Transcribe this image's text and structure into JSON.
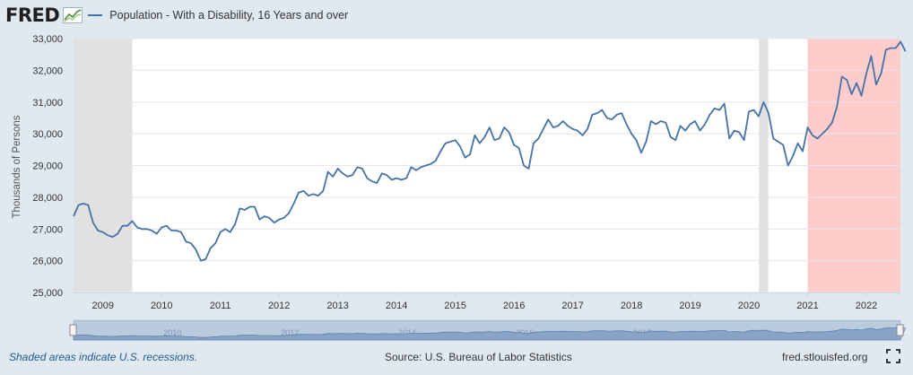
{
  "header": {
    "logo_text": "FRED",
    "legend_label": "Population - With a Disability, 16 Years and over"
  },
  "footer": {
    "recession_note": "Shaded areas indicate U.S. recessions.",
    "source": "Source: U.S. Bureau of Labor Statistics",
    "site": "fred.stlouisfed.org"
  },
  "colors": {
    "line": "#4572a7",
    "recession": "#e1e1e1",
    "highlight": "#ffcccc",
    "background": "#e1e9f0"
  },
  "chart_data": {
    "type": "line",
    "title": "Population - With a Disability, 16 Years and over",
    "ylabel": "Thousands of Persons",
    "xlabel": "",
    "xlim": [
      2008.5,
      2022.58
    ],
    "ylim": [
      25000,
      33000
    ],
    "y_ticks": [
      25000,
      26000,
      27000,
      28000,
      29000,
      30000,
      31000,
      32000,
      33000
    ],
    "y_tick_labels": [
      "25,000",
      "26,000",
      "27,000",
      "28,000",
      "29,000",
      "30,000",
      "31,000",
      "32,000",
      "33,000"
    ],
    "x_ticks": [
      2009,
      2010,
      2011,
      2012,
      2013,
      2014,
      2015,
      2016,
      2017,
      2018,
      2019,
      2020,
      2021,
      2022
    ],
    "x_tick_labels": [
      "2009",
      "2010",
      "2011",
      "2012",
      "2013",
      "2014",
      "2015",
      "2016",
      "2017",
      "2018",
      "2019",
      "2020",
      "2021",
      "2022"
    ],
    "recessions": [
      [
        2008.5,
        2009.5
      ],
      [
        2020.17,
        2020.33
      ]
    ],
    "highlight_range": [
      2021.0,
      2022.58
    ],
    "navigator_labels": [
      "2010",
      "2012",
      "2014",
      "2016",
      "2018",
      "2020",
      "2022"
    ],
    "series": [
      {
        "name": "Population - With a Disability, 16 Years and over",
        "x_start": 2008.5,
        "x_step": 0.08333,
        "values": [
          27400,
          27750,
          27800,
          27750,
          27200,
          26950,
          26900,
          26800,
          26750,
          26850,
          27100,
          27100,
          27250,
          27050,
          27000,
          27000,
          26950,
          26850,
          27050,
          27100,
          26950,
          26950,
          26900,
          26600,
          26550,
          26350,
          26000,
          26050,
          26400,
          26550,
          26900,
          27000,
          26900,
          27150,
          27650,
          27600,
          27700,
          27700,
          27300,
          27400,
          27350,
          27200,
          27300,
          27350,
          27500,
          27800,
          28150,
          28200,
          28050,
          28100,
          28050,
          28200,
          28800,
          28650,
          28900,
          28750,
          28650,
          28700,
          28950,
          28900,
          28600,
          28500,
          28450,
          28750,
          28700,
          28550,
          28600,
          28550,
          28600,
          28950,
          28850,
          28950,
          29000,
          29050,
          29150,
          29450,
          29700,
          29750,
          29800,
          29600,
          29250,
          29350,
          29950,
          29700,
          29900,
          30200,
          29800,
          29850,
          30200,
          30050,
          29650,
          29550,
          29000,
          28900,
          29700,
          29850,
          30150,
          30450,
          30200,
          30250,
          30400,
          30250,
          30150,
          30100,
          29950,
          30150,
          30600,
          30650,
          30750,
          30500,
          30450,
          30600,
          30650,
          30300,
          30000,
          29800,
          29400,
          29750,
          30400,
          30300,
          30400,
          30350,
          29900,
          29800,
          30250,
          30100,
          30300,
          30400,
          30100,
          30300,
          30600,
          30800,
          30750,
          30950,
          29850,
          30100,
          30050,
          29800,
          30700,
          30750,
          30550,
          31000,
          30650,
          29850,
          29750,
          29650,
          29000,
          29300,
          29700,
          29450,
          30200,
          29950,
          29850,
          30000,
          30150,
          30350,
          30850,
          31800,
          31700,
          31250,
          31600,
          31200,
          31900,
          32450,
          31550,
          31900,
          32650,
          32700,
          32700,
          32900,
          32600
        ]
      }
    ]
  }
}
